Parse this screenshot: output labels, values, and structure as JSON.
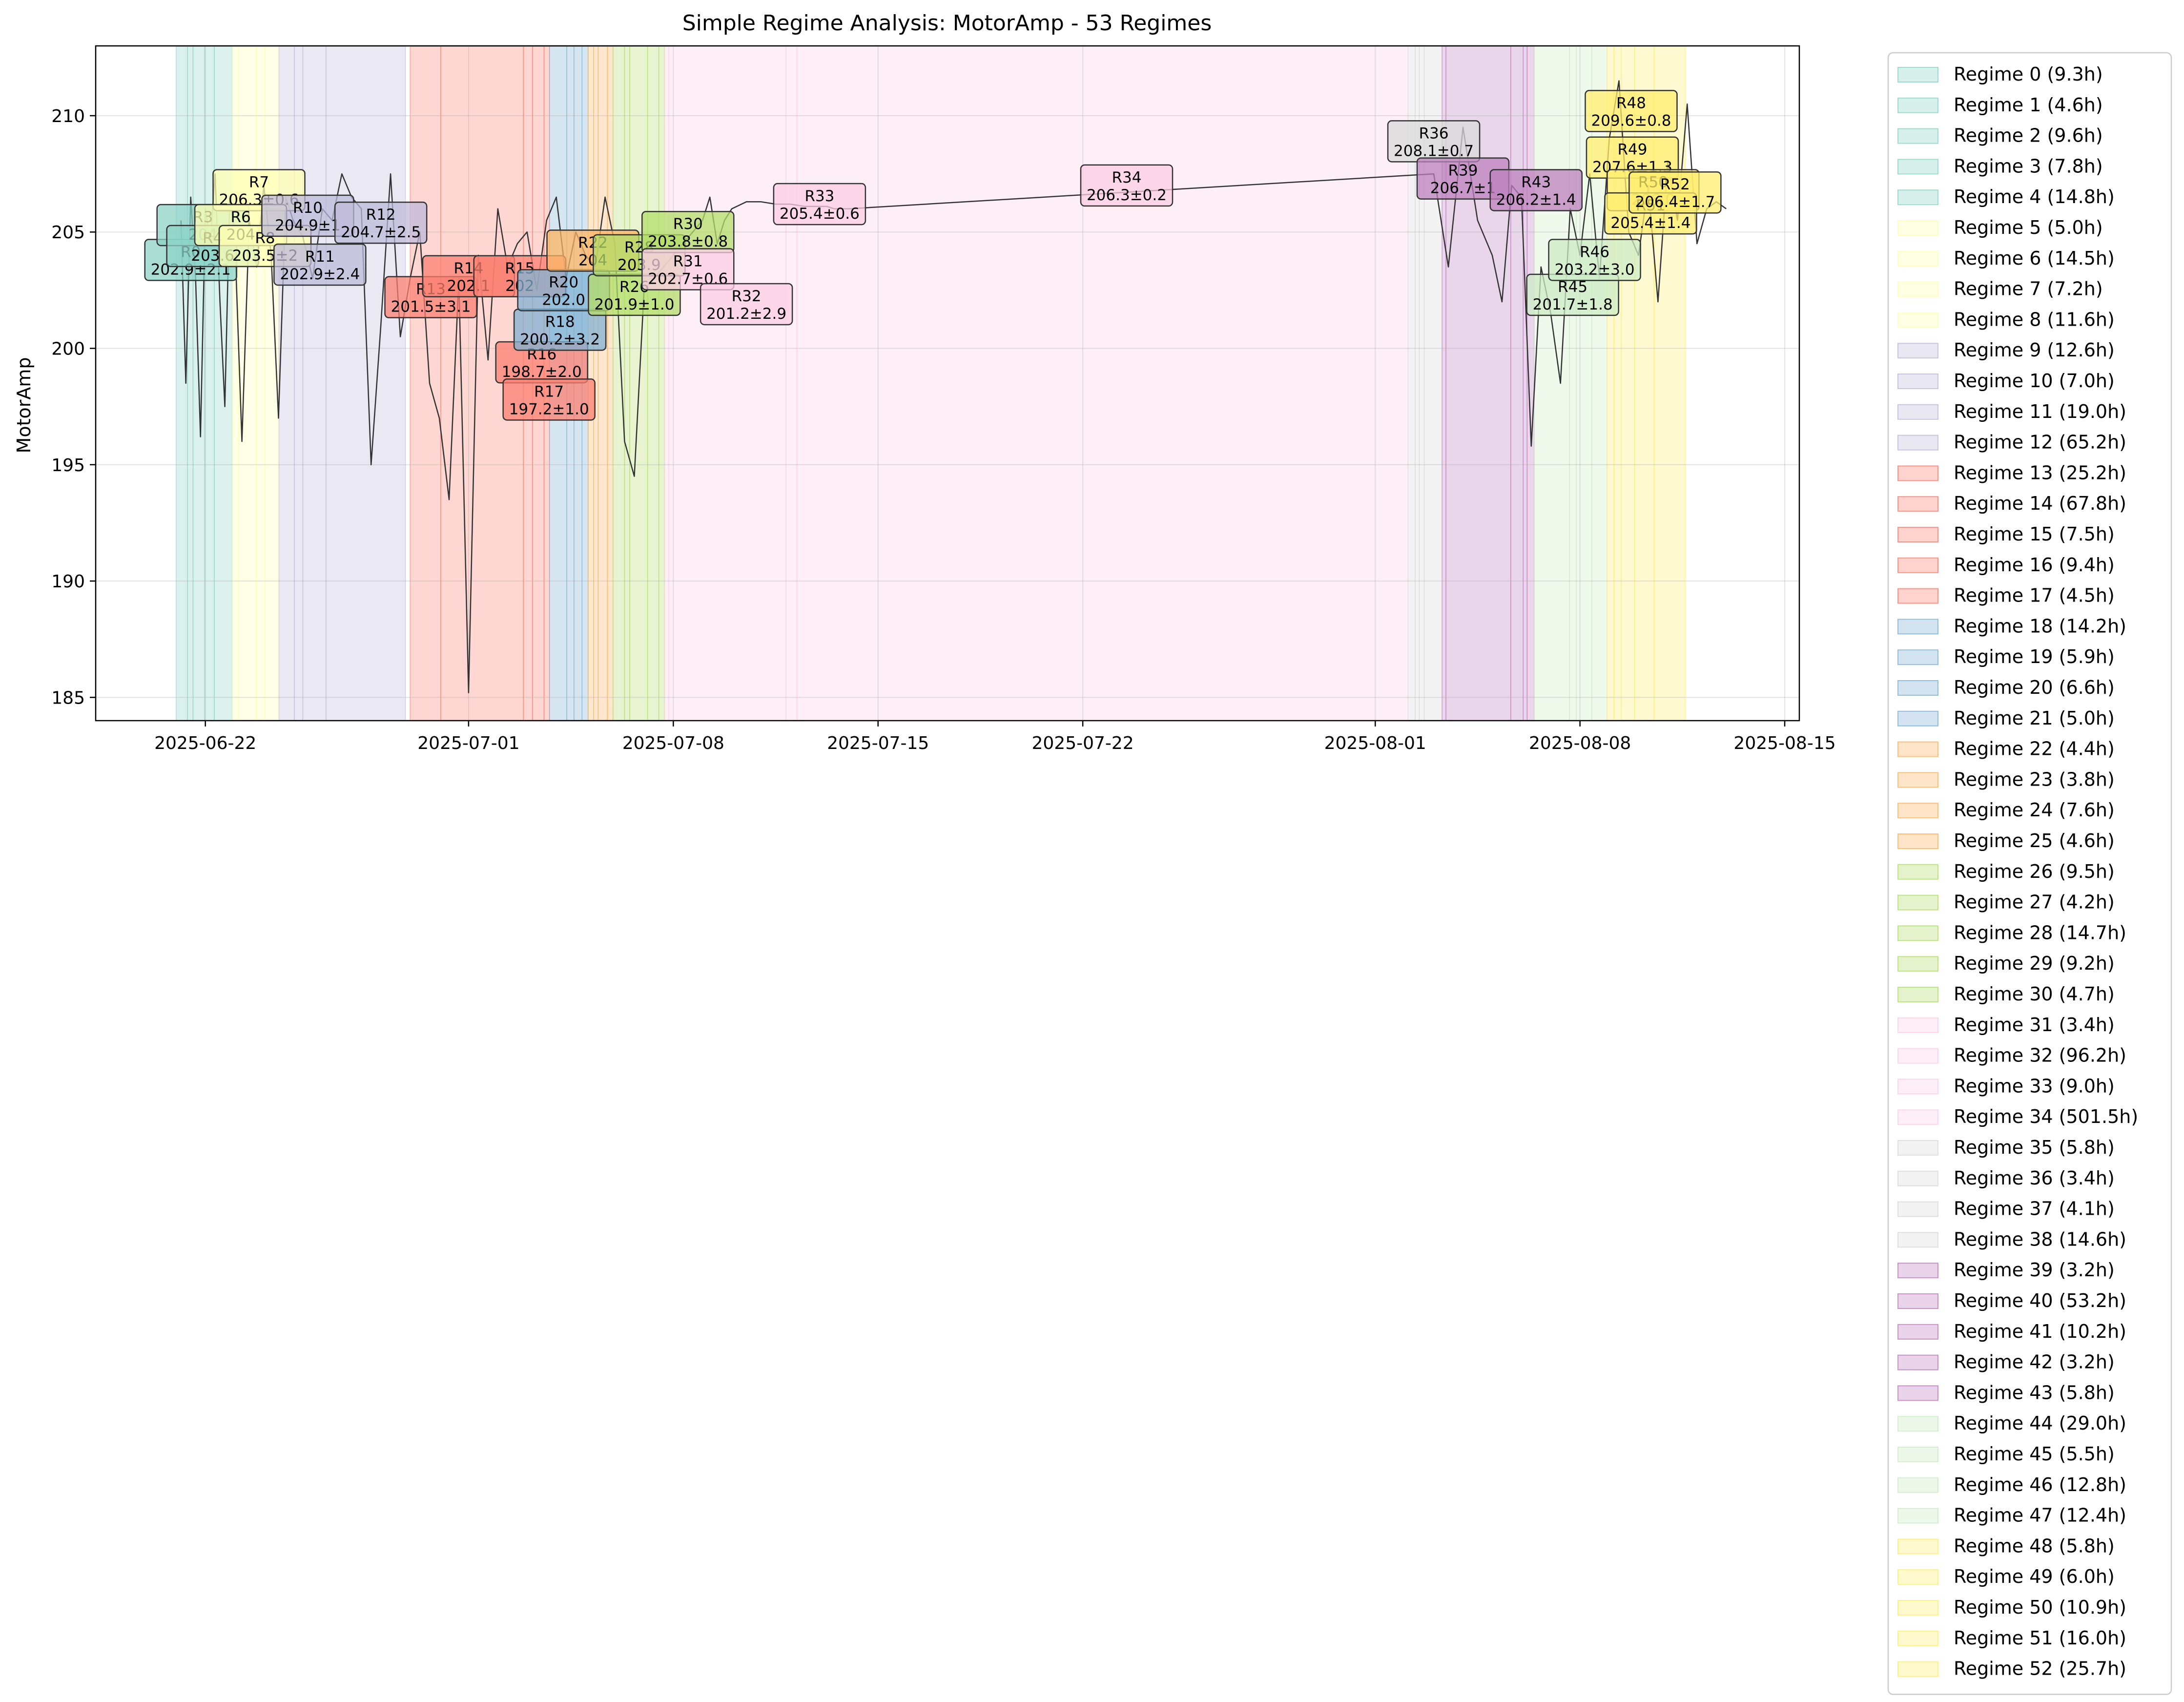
{
  "chart_data": {
    "type": "line",
    "title": "Simple Regime Analysis: MotorAmp - 53 Regimes",
    "xlabel": "",
    "ylabel": "MotorAmp",
    "x_range": [
      "2025-06-18T06:00",
      "2025-08-15T12:00"
    ],
    "ylim": [
      184,
      213
    ],
    "grid": true,
    "legend_placement": "outside right",
    "x_ticks": [
      {
        "date": "2025-06-22",
        "label": "2025-06-22"
      },
      {
        "date": "2025-07-01",
        "label": "2025-07-01"
      },
      {
        "date": "2025-07-08",
        "label": "2025-07-08"
      },
      {
        "date": "2025-07-15",
        "label": "2025-07-15"
      },
      {
        "date": "2025-07-22",
        "label": "2025-07-22"
      },
      {
        "date": "2025-08-01",
        "label": "2025-08-01"
      },
      {
        "date": "2025-08-08",
        "label": "2025-08-08"
      },
      {
        "date": "2025-08-15",
        "label": "2025-08-15"
      }
    ],
    "y_ticks": [
      185,
      190,
      195,
      200,
      205,
      210
    ],
    "series_color": "#333333",
    "series": [
      {
        "x": [
          "2025-06-21T04:00",
          "2025-06-21T08:00",
          "2025-06-21T12:00",
          "2025-06-21T16:00",
          "2025-06-21T20:00",
          "2025-06-22T00:00",
          "2025-06-22T04:00",
          "2025-06-22T08:00",
          "2025-06-22T12:00",
          "2025-06-22T16:00",
          "2025-06-22T20:00",
          "2025-06-23T00:00",
          "2025-06-23T06:00",
          "2025-06-23T12:00",
          "2025-06-23T18:00",
          "2025-06-24T00:00",
          "2025-06-24T06:00",
          "2025-06-24T12:00",
          "2025-06-24T18:00",
          "2025-06-25T00:00",
          "2025-06-25T08:00",
          "2025-06-25T16:00",
          "2025-06-26T00:00",
          "2025-06-26T08:00",
          "2025-06-26T16:00",
          "2025-06-27T00:00",
          "2025-06-27T08:00",
          "2025-06-27T16:00",
          "2025-06-28T00:00",
          "2025-06-28T08:00",
          "2025-06-28T16:00",
          "2025-06-29T00:00",
          "2025-06-29T08:00",
          "2025-06-29T16:00",
          "2025-06-30T00:00",
          "2025-06-30T08:00",
          "2025-06-30T16:00",
          "2025-07-01T00:00",
          "2025-07-01T08:00",
          "2025-07-01T16:00",
          "2025-07-02T00:00",
          "2025-07-02T08:00",
          "2025-07-02T16:00",
          "2025-07-03T00:00",
          "2025-07-03T08:00",
          "2025-07-03T16:00",
          "2025-07-04T00:00",
          "2025-07-04T08:00",
          "2025-07-04T16:00",
          "2025-07-05T00:00",
          "2025-07-05T08:00",
          "2025-07-05T16:00",
          "2025-07-06T00:00",
          "2025-07-06T08:00",
          "2025-07-06T16:00",
          "2025-07-07T00:00",
          "2025-07-07T08:00",
          "2025-07-07T16:00",
          "2025-07-08T00:00",
          "2025-07-08T08:00",
          "2025-07-08T16:00",
          "2025-07-09T00:00",
          "2025-07-09T06:00",
          "2025-07-09T12:00",
          "2025-07-09T18:00",
          "2025-07-10T00:00",
          "2025-07-10T12:00",
          "2025-07-11T00:00",
          "2025-07-11T12:00",
          "2025-07-12T00:00",
          "2025-07-12T12:00",
          "2025-07-13T00:00",
          "2025-07-13T06:00",
          "2025-07-13T12:00",
          "2025-07-13T18:00",
          "2025-07-14T00:00",
          "2025-08-03T00:00",
          "2025-08-03T12:00",
          "2025-08-04T00:00",
          "2025-08-04T12:00",
          "2025-08-05T00:00",
          "2025-08-05T08:00",
          "2025-08-05T16:00",
          "2025-08-06T00:00",
          "2025-08-06T08:00",
          "2025-08-06T16:00",
          "2025-08-07T00:00",
          "2025-08-07T08:00",
          "2025-08-07T16:00",
          "2025-08-08T00:00",
          "2025-08-08T08:00",
          "2025-08-08T16:00",
          "2025-08-09T00:00",
          "2025-08-09T08:00",
          "2025-08-09T16:00",
          "2025-08-10T00:00",
          "2025-08-10T08:00",
          "2025-08-10T16:00",
          "2025-08-11T00:00",
          "2025-08-11T08:00",
          "2025-08-11T16:00",
          "2025-08-12T00:00",
          "2025-08-12T08:00",
          "2025-08-12T16:00",
          "2025-08-13T00:00"
        ],
        "y": [
          205.5,
          198.5,
          206.5,
          203.0,
          196.2,
          206.0,
          204.5,
          207.5,
          202.0,
          197.5,
          206.5,
          205.0,
          196.0,
          205.5,
          203.5,
          207.0,
          204.0,
          197.0,
          206.5,
          205.5,
          204.8,
          203.0,
          206.0,
          205.5,
          207.5,
          206.5,
          206.0,
          195.0,
          201.0,
          207.5,
          200.5,
          203.0,
          205.0,
          198.5,
          197.0,
          193.5,
          203.0,
          185.2,
          204.0,
          199.5,
          206.0,
          203.5,
          204.5,
          205.0,
          202.5,
          205.5,
          206.5,
          203.0,
          205.0,
          204.0,
          203.5,
          206.5,
          204.5,
          196.0,
          194.5,
          202.5,
          203.0,
          203.5,
          204.0,
          204.5,
          205.0,
          205.5,
          206.5,
          204.5,
          205.5,
          206.0,
          206.3,
          206.3,
          206.2,
          206.2,
          206.1,
          206.1,
          206.1,
          206.0,
          206.0,
          206.0,
          207.5,
          203.5,
          209.5,
          205.5,
          204.0,
          202.0,
          207.0,
          206.5,
          195.8,
          203.5,
          201.5,
          198.5,
          206.0,
          204.0,
          207.5,
          203.0,
          209.0,
          211.5,
          205.0,
          204.0,
          207.0,
          202.0,
          208.0,
          205.5,
          210.5,
          204.5,
          206.0,
          206.3,
          206.0
        ]
      }
    ],
    "regimes": [
      {
        "label": "Regime 0 (9.3h)",
        "start": "2025-06-21T00:00",
        "end": "2025-06-21T09:18",
        "color": "#8dd3c7"
      },
      {
        "label": "Regime 1 (4.6h)",
        "start": "2025-06-21T09:18",
        "end": "2025-06-21T13:54",
        "color": "#8dd3c7"
      },
      {
        "label": "Regime 2 (9.6h)",
        "start": "2025-06-21T13:54",
        "end": "2025-06-21T23:30",
        "color": "#8dd3c7"
      },
      {
        "label": "Regime 3 (7.8h)",
        "start": "2025-06-21T23:30",
        "end": "2025-06-22T07:18",
        "color": "#8dd3c7"
      },
      {
        "label": "Regime 4 (14.8h)",
        "start": "2025-06-22T07:18",
        "end": "2025-06-22T22:06",
        "color": "#8dd3c7"
      },
      {
        "label": "Regime 5 (5.0h)",
        "start": "2025-06-22T22:06",
        "end": "2025-06-23T03:06",
        "color": "#ffffb3"
      },
      {
        "label": "Regime 6 (14.5h)",
        "start": "2025-06-23T03:06",
        "end": "2025-06-23T17:36",
        "color": "#ffffb3"
      },
      {
        "label": "Regime 7 (7.2h)",
        "start": "2025-06-23T17:36",
        "end": "2025-06-24T00:48",
        "color": "#ffffb3"
      },
      {
        "label": "Regime 8 (11.6h)",
        "start": "2025-06-24T00:48",
        "end": "2025-06-24T12:24",
        "color": "#ffffb3"
      },
      {
        "label": "Regime 9 (12.6h)",
        "start": "2025-06-24T12:24",
        "end": "2025-06-25T01:00",
        "color": "#bebada"
      },
      {
        "label": "Regime 10 (7.0h)",
        "start": "2025-06-25T01:00",
        "end": "2025-06-25T08:00",
        "color": "#bebada"
      },
      {
        "label": "Regime 11 (19.0h)",
        "start": "2025-06-25T08:00",
        "end": "2025-06-26T03:00",
        "color": "#bebada"
      },
      {
        "label": "Regime 12 (65.2h)",
        "start": "2025-06-26T03:00",
        "end": "2025-06-28T20:12",
        "color": "#bebada"
      },
      {
        "label": "Regime 13 (25.2h)",
        "start": "2025-06-29T00:00",
        "end": "2025-06-30T01:12",
        "color": "#fb8072"
      },
      {
        "label": "Regime 14 (67.8h)",
        "start": "2025-06-30T01:12",
        "end": "2025-07-02T21:00",
        "color": "#fb8072"
      },
      {
        "label": "Regime 15 (7.5h)",
        "start": "2025-07-02T21:00",
        "end": "2025-07-03T04:30",
        "color": "#fb8072"
      },
      {
        "label": "Regime 16 (9.4h)",
        "start": "2025-07-03T04:30",
        "end": "2025-07-03T13:54",
        "color": "#fb8072"
      },
      {
        "label": "Regime 17 (4.5h)",
        "start": "2025-07-03T13:54",
        "end": "2025-07-03T18:24",
        "color": "#fb8072"
      },
      {
        "label": "Regime 18 (14.2h)",
        "start": "2025-07-03T18:24",
        "end": "2025-07-04T08:36",
        "color": "#80b1d3"
      },
      {
        "label": "Regime 19 (5.9h)",
        "start": "2025-07-04T08:36",
        "end": "2025-07-04T14:30",
        "color": "#80b1d3"
      },
      {
        "label": "Regime 20 (6.6h)",
        "start": "2025-07-04T14:30",
        "end": "2025-07-04T21:06",
        "color": "#80b1d3"
      },
      {
        "label": "Regime 21 (5.0h)",
        "start": "2025-07-04T21:06",
        "end": "2025-07-05T02:06",
        "color": "#80b1d3"
      },
      {
        "label": "Regime 22 (4.4h)",
        "start": "2025-07-05T02:06",
        "end": "2025-07-05T06:30",
        "color": "#fdb462"
      },
      {
        "label": "Regime 23 (3.8h)",
        "start": "2025-07-05T06:30",
        "end": "2025-07-05T10:18",
        "color": "#fdb462"
      },
      {
        "label": "Regime 24 (7.6h)",
        "start": "2025-07-05T10:18",
        "end": "2025-07-05T17:54",
        "color": "#fdb462"
      },
      {
        "label": "Regime 25 (4.6h)",
        "start": "2025-07-05T17:54",
        "end": "2025-07-05T22:30",
        "color": "#fdb462"
      },
      {
        "label": "Regime 26 (9.5h)",
        "start": "2025-07-05T22:30",
        "end": "2025-07-06T08:00",
        "color": "#b3de69"
      },
      {
        "label": "Regime 27 (4.2h)",
        "start": "2025-07-06T08:00",
        "end": "2025-07-06T12:12",
        "color": "#b3de69"
      },
      {
        "label": "Regime 28 (14.7h)",
        "start": "2025-07-06T12:12",
        "end": "2025-07-07T02:54",
        "color": "#b3de69"
      },
      {
        "label": "Regime 29 (9.2h)",
        "start": "2025-07-07T02:54",
        "end": "2025-07-07T12:06",
        "color": "#b3de69"
      },
      {
        "label": "Regime 30 (4.7h)",
        "start": "2025-07-07T12:06",
        "end": "2025-07-07T16:48",
        "color": "#b3de69"
      },
      {
        "label": "Regime 31 (3.4h)",
        "start": "2025-07-07T16:48",
        "end": "2025-07-07T20:12",
        "color": "#fccde5"
      },
      {
        "label": "Regime 32 (96.2h)",
        "start": "2025-07-07T20:12",
        "end": "2025-07-11T20:24",
        "color": "#fccde5"
      },
      {
        "label": "Regime 33 (9.0h)",
        "start": "2025-07-11T20:24",
        "end": "2025-07-12T05:24",
        "color": "#fccde5"
      },
      {
        "label": "Regime 34 (501.5h)",
        "start": "2025-07-12T05:24",
        "end": "2025-08-02T02:54",
        "color": "#fccde5"
      },
      {
        "label": "Regime 35 (5.8h)",
        "start": "2025-08-02T02:54",
        "end": "2025-08-02T08:42",
        "color": "#d9d9d9"
      },
      {
        "label": "Regime 36 (3.4h)",
        "start": "2025-08-02T08:42",
        "end": "2025-08-02T12:06",
        "color": "#d9d9d9"
      },
      {
        "label": "Regime 37 (4.1h)",
        "start": "2025-08-02T12:06",
        "end": "2025-08-02T16:12",
        "color": "#d9d9d9"
      },
      {
        "label": "Regime 38 (14.6h)",
        "start": "2025-08-02T16:12",
        "end": "2025-08-03T06:48",
        "color": "#d9d9d9"
      },
      {
        "label": "Regime 39 (3.2h)",
        "start": "2025-08-03T06:48",
        "end": "2025-08-03T10:00",
        "color": "#bc80bd"
      },
      {
        "label": "Regime 40 (53.2h)",
        "start": "2025-08-03T10:00",
        "end": "2025-08-05T15:12",
        "color": "#bc80bd"
      },
      {
        "label": "Regime 41 (10.2h)",
        "start": "2025-08-05T15:12",
        "end": "2025-08-06T01:24",
        "color": "#bc80bd"
      },
      {
        "label": "Regime 42 (3.2h)",
        "start": "2025-08-06T01:24",
        "end": "2025-08-06T04:36",
        "color": "#bc80bd"
      },
      {
        "label": "Regime 43 (5.8h)",
        "start": "2025-08-06T04:36",
        "end": "2025-08-06T10:24",
        "color": "#bc80bd"
      },
      {
        "label": "Regime 44 (29.0h)",
        "start": "2025-08-06T10:24",
        "end": "2025-08-07T15:24",
        "color": "#ccebc5"
      },
      {
        "label": "Regime 45 (5.5h)",
        "start": "2025-08-07T15:24",
        "end": "2025-08-07T20:54",
        "color": "#ccebc5"
      },
      {
        "label": "Regime 46 (12.8h)",
        "start": "2025-08-07T20:54",
        "end": "2025-08-08T09:42",
        "color": "#ccebc5"
      },
      {
        "label": "Regime 47 (12.4h)",
        "start": "2025-08-08T09:42",
        "end": "2025-08-08T22:06",
        "color": "#ccebc5"
      },
      {
        "label": "Regime 48 (5.8h)",
        "start": "2025-08-08T22:06",
        "end": "2025-08-09T03:54",
        "color": "#ffed6f"
      },
      {
        "label": "Regime 49 (6.0h)",
        "start": "2025-08-09T03:54",
        "end": "2025-08-09T09:54",
        "color": "#ffed6f"
      },
      {
        "label": "Regime 50 (10.9h)",
        "start": "2025-08-09T09:54",
        "end": "2025-08-09T20:48",
        "color": "#ffed6f"
      },
      {
        "label": "Regime 51 (16.0h)",
        "start": "2025-08-09T20:48",
        "end": "2025-08-10T12:48",
        "color": "#ffed6f"
      },
      {
        "label": "Regime 52 (25.7h)",
        "start": "2025-08-10T12:48",
        "end": "2025-08-11T14:30",
        "color": "#ffed6f"
      }
    ],
    "annotations": [
      {
        "id": "R0",
        "value": "202.9±2.1",
        "x": "2025-06-21T12:00",
        "y": 203.8,
        "color": "#8dd3c7"
      },
      {
        "id": "R3",
        "value": "204",
        "x": "2025-06-21T22:00",
        "y": 205.3,
        "color": "#8dd3c7"
      },
      {
        "id": "R4",
        "value": "203.6",
        "x": "2025-06-22T06:00",
        "y": 204.4,
        "color": "#8dd3c7"
      },
      {
        "id": "R7",
        "value": "206.3±0.6",
        "x": "2025-06-23T20:00",
        "y": 206.8,
        "color": "#ffffb3"
      },
      {
        "id": "R6",
        "value": "204",
        "x": "2025-06-23T05:00",
        "y": 205.3,
        "color": "#ffffb3"
      },
      {
        "id": "R8",
        "value": "203.5±2",
        "x": "2025-06-24T01:00",
        "y": 204.4,
        "color": "#ffffb3"
      },
      {
        "id": "R10",
        "value": "204.9±1",
        "x": "2025-06-25T12:00",
        "y": 205.7,
        "color": "#bebada"
      },
      {
        "id": "R11",
        "value": "202.9±2.4",
        "x": "2025-06-25T22:00",
        "y": 203.6,
        "color": "#bebada"
      },
      {
        "id": "R12",
        "value": "204.7±2.5",
        "x": "2025-06-28T00:00",
        "y": 205.4,
        "color": "#bebada"
      },
      {
        "id": "R13",
        "value": "201.5±3.1",
        "x": "2025-06-29T17:00",
        "y": 202.2,
        "color": "#fb8072"
      },
      {
        "id": "R14",
        "value": "202.1",
        "x": "2025-07-01T00:00",
        "y": 203.1,
        "color": "#fb8072"
      },
      {
        "id": "R15",
        "value": "202",
        "x": "2025-07-02T18:00",
        "y": 203.1,
        "color": "#fb8072"
      },
      {
        "id": "R16",
        "value": "198.7±2.0",
        "x": "2025-07-03T12:00",
        "y": 199.4,
        "color": "#fb8072"
      },
      {
        "id": "R17",
        "value": "197.2±1.0",
        "x": "2025-07-03T18:00",
        "y": 197.8,
        "color": "#fb8072"
      },
      {
        "id": "R18",
        "value": "200.2±3.2",
        "x": "2025-07-04T03:00",
        "y": 200.8,
        "color": "#80b1d3"
      },
      {
        "id": "R20",
        "value": "202.0",
        "x": "2025-07-04T06:00",
        "y": 202.5,
        "color": "#80b1d3"
      },
      {
        "id": "R22",
        "value": "204",
        "x": "2025-07-05T06:00",
        "y": 204.2,
        "color": "#fdb462"
      },
      {
        "id": "R26",
        "value": "201.9±1.0",
        "x": "2025-07-06T16:00",
        "y": 202.3,
        "color": "#b3de69"
      },
      {
        "id": "R28",
        "value": "203.9",
        "x": "2025-07-06T20:00",
        "y": 204.0,
        "color": "#b3de69"
      },
      {
        "id": "R30",
        "value": "203.8±0.8",
        "x": "2025-07-08T12:00",
        "y": 205.0,
        "color": "#b3de69"
      },
      {
        "id": "R31",
        "value": "202.7±0.6",
        "x": "2025-07-08T12:00",
        "y": 203.4,
        "color": "#fccde5"
      },
      {
        "id": "R32",
        "value": "201.2±2.9",
        "x": "2025-07-10T12:00",
        "y": 201.9,
        "color": "#fccde5"
      },
      {
        "id": "R33",
        "value": "205.4±0.6",
        "x": "2025-07-13T00:00",
        "y": 206.2,
        "color": "#fccde5"
      },
      {
        "id": "R34",
        "value": "206.3±0.2",
        "x": "2025-07-23T12:00",
        "y": 207.0,
        "color": "#fccde5"
      },
      {
        "id": "R36",
        "value": "208.1±0.7",
        "x": "2025-08-03T00:00",
        "y": 208.9,
        "color": "#d9d9d9"
      },
      {
        "id": "R39",
        "value": "206.7±1",
        "x": "2025-08-04T00:00",
        "y": 207.3,
        "color": "#bc80bd"
      },
      {
        "id": "R43",
        "value": "206.2±1.4",
        "x": "2025-08-06T12:00",
        "y": 206.8,
        "color": "#bc80bd"
      },
      {
        "id": "R45",
        "value": "201.7±1.8",
        "x": "2025-08-07T18:00",
        "y": 202.3,
        "color": "#ccebc5"
      },
      {
        "id": "R46",
        "value": "203.2±3.0",
        "x": "2025-08-08T12:00",
        "y": 203.8,
        "color": "#ccebc5"
      },
      {
        "id": "R48",
        "value": "209.6±0.8",
        "x": "2025-08-09T18:00",
        "y": 210.2,
        "color": "#ffed6f"
      },
      {
        "id": "R49",
        "value": "207.6±1.3",
        "x": "2025-08-09T19:00",
        "y": 208.2,
        "color": "#ffed6f"
      },
      {
        "id": "R50",
        "value": "206.0",
        "x": "2025-08-10T12:00",
        "y": 206.8,
        "color": "#ffed6f"
      },
      {
        "id": "R51",
        "value": "205.4±1.4",
        "x": "2025-08-10T10:00",
        "y": 205.8,
        "color": "#ffed6f"
      },
      {
        "id": "R52",
        "value": "206.4±1.7",
        "x": "2025-08-11T06:00",
        "y": 206.7,
        "color": "#ffed6f"
      }
    ]
  }
}
